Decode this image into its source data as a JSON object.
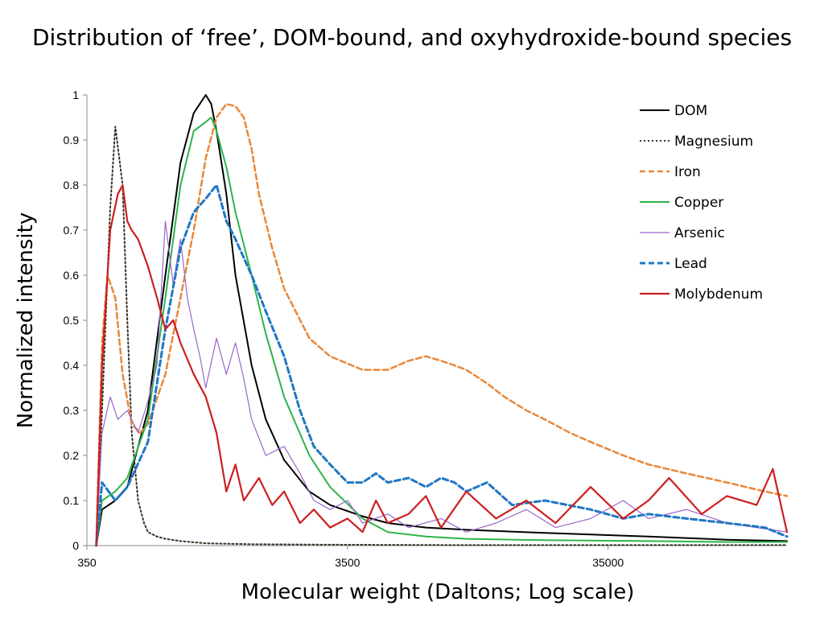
{
  "chart_data": {
    "type": "line",
    "title": "Distribution of ‘free’, DOM-bound, and oxyhydroxide-bound species",
    "xlabel": "Molecular weight (Daltons; Log scale)",
    "ylabel": "Normalized intensity",
    "x_scale": "log",
    "xlim": [
      350,
      170000
    ],
    "ylim": [
      0,
      1
    ],
    "x_ticks": [
      "350",
      "3500",
      "35000"
    ],
    "y_ticks": [
      "0",
      "0.1",
      "0.2",
      "0.3",
      "0.4",
      "0.5",
      "0.6",
      "0.7",
      "0.8",
      "0.9",
      "1"
    ],
    "legend_position": "top-right",
    "grid": false,
    "series": [
      {
        "name": "DOM",
        "color": "#000000",
        "style": "solid",
        "width": 2,
        "x": [
          380,
          400,
          450,
          500,
          600,
          700,
          800,
          900,
          1000,
          1050,
          1100,
          1200,
          1300,
          1500,
          1700,
          2000,
          2500,
          3000,
          4000,
          5000,
          7000,
          10000,
          20000,
          50000,
          100000,
          170000
        ],
        "y": [
          0,
          0.08,
          0.1,
          0.13,
          0.3,
          0.6,
          0.85,
          0.96,
          1.0,
          0.98,
          0.92,
          0.78,
          0.6,
          0.4,
          0.28,
          0.19,
          0.12,
          0.09,
          0.065,
          0.05,
          0.04,
          0.035,
          0.028,
          0.02,
          0.013,
          0.01
        ]
      },
      {
        "name": "Magnesium",
        "color": "#3a3226",
        "style": "dotted",
        "width": 2,
        "x": [
          380,
          400,
          430,
          450,
          480,
          500,
          520,
          550,
          580,
          600,
          650,
          700,
          800,
          1000,
          1500,
          3000,
          10000,
          170000
        ],
        "y": [
          0,
          0.3,
          0.75,
          0.93,
          0.8,
          0.5,
          0.25,
          0.1,
          0.05,
          0.03,
          0.02,
          0.015,
          0.01,
          0.005,
          0.003,
          0.002,
          0.001,
          0.001
        ]
      },
      {
        "name": "Iron",
        "color": "#e8883a",
        "style": "dashed",
        "width": 2.5,
        "x": [
          380,
          400,
          420,
          450,
          480,
          520,
          560,
          600,
          700,
          800,
          900,
          1000,
          1100,
          1200,
          1300,
          1400,
          1500,
          1600,
          1800,
          2000,
          2500,
          3000,
          4000,
          5000,
          6000,
          7000,
          8000,
          9000,
          10000,
          12000,
          14000,
          17000,
          20000,
          25000,
          30000,
          40000,
          50000,
          70000,
          100000,
          140000,
          170000
        ],
        "y": [
          0,
          0.45,
          0.6,
          0.55,
          0.38,
          0.27,
          0.25,
          0.27,
          0.38,
          0.55,
          0.7,
          0.86,
          0.95,
          0.98,
          0.975,
          0.95,
          0.88,
          0.78,
          0.66,
          0.57,
          0.46,
          0.42,
          0.39,
          0.39,
          0.41,
          0.42,
          0.41,
          0.4,
          0.39,
          0.36,
          0.33,
          0.3,
          0.28,
          0.25,
          0.23,
          0.2,
          0.18,
          0.16,
          0.14,
          0.12,
          0.11
        ]
      },
      {
        "name": "Copper",
        "color": "#2eb34a",
        "style": "solid",
        "width": 2,
        "x": [
          380,
          400,
          450,
          500,
          600,
          700,
          800,
          900,
          1000,
          1050,
          1100,
          1200,
          1300,
          1500,
          1700,
          2000,
          2500,
          3000,
          4000,
          5000,
          7000,
          10000,
          20000,
          50000,
          100000,
          170000
        ],
        "y": [
          0,
          0.1,
          0.12,
          0.15,
          0.28,
          0.55,
          0.8,
          0.92,
          0.94,
          0.95,
          0.92,
          0.84,
          0.74,
          0.6,
          0.47,
          0.33,
          0.2,
          0.13,
          0.06,
          0.03,
          0.02,
          0.015,
          0.012,
          0.01,
          0.008,
          0.008
        ]
      },
      {
        "name": "Arsenic",
        "color": "#9966cc",
        "style": "solid",
        "width": 1.2,
        "x": [
          380,
          400,
          430,
          460,
          500,
          550,
          600,
          650,
          700,
          750,
          800,
          850,
          900,
          950,
          1000,
          1100,
          1200,
          1300,
          1400,
          1500,
          1700,
          2000,
          2300,
          2600,
          3000,
          3500,
          4000,
          5000,
          6000,
          8000,
          10000,
          13000,
          17000,
          22000,
          30000,
          40000,
          50000,
          70000,
          100000,
          130000,
          170000
        ],
        "y": [
          0,
          0.25,
          0.33,
          0.28,
          0.3,
          0.25,
          0.32,
          0.4,
          0.72,
          0.58,
          0.68,
          0.55,
          0.48,
          0.42,
          0.35,
          0.46,
          0.38,
          0.45,
          0.37,
          0.28,
          0.2,
          0.22,
          0.16,
          0.1,
          0.08,
          0.1,
          0.05,
          0.07,
          0.04,
          0.06,
          0.03,
          0.05,
          0.08,
          0.04,
          0.06,
          0.1,
          0.06,
          0.08,
          0.05,
          0.04,
          0.03
        ]
      },
      {
        "name": "Lead",
        "color": "#1f77c4",
        "style": "dashed",
        "width": 3,
        "x": [
          380,
          400,
          450,
          500,
          600,
          700,
          800,
          900,
          1000,
          1100,
          1200,
          1300,
          1500,
          1700,
          2000,
          2300,
          2600,
          3000,
          3500,
          4000,
          4500,
          5000,
          6000,
          7000,
          8000,
          9000,
          10000,
          12000,
          15000,
          20000,
          30000,
          40000,
          50000,
          70000,
          100000,
          140000,
          170000
        ],
        "y": [
          0,
          0.14,
          0.1,
          0.13,
          0.23,
          0.48,
          0.66,
          0.74,
          0.77,
          0.8,
          0.72,
          0.68,
          0.6,
          0.52,
          0.42,
          0.3,
          0.22,
          0.18,
          0.14,
          0.14,
          0.16,
          0.14,
          0.15,
          0.13,
          0.15,
          0.14,
          0.12,
          0.14,
          0.09,
          0.1,
          0.08,
          0.06,
          0.07,
          0.06,
          0.05,
          0.04,
          0.02
        ]
      },
      {
        "name": "Molybdenum",
        "color": "#cc1f1f",
        "style": "solid",
        "width": 2.2,
        "x": [
          380,
          400,
          430,
          460,
          480,
          500,
          520,
          550,
          600,
          650,
          700,
          750,
          800,
          900,
          1000,
          1100,
          1200,
          1300,
          1400,
          1600,
          1800,
          2000,
          2300,
          2600,
          3000,
          3500,
          4000,
          4500,
          5000,
          6000,
          7000,
          8000,
          10000,
          13000,
          17000,
          22000,
          30000,
          40000,
          50000,
          60000,
          80000,
          100000,
          130000,
          150000,
          170000
        ],
        "y": [
          0,
          0.4,
          0.7,
          0.78,
          0.8,
          0.72,
          0.7,
          0.68,
          0.62,
          0.55,
          0.48,
          0.5,
          0.45,
          0.38,
          0.33,
          0.25,
          0.12,
          0.18,
          0.1,
          0.15,
          0.09,
          0.12,
          0.05,
          0.08,
          0.04,
          0.06,
          0.03,
          0.1,
          0.05,
          0.07,
          0.11,
          0.04,
          0.12,
          0.06,
          0.1,
          0.05,
          0.13,
          0.06,
          0.1,
          0.15,
          0.07,
          0.11,
          0.09,
          0.17,
          0.03
        ]
      }
    ]
  }
}
